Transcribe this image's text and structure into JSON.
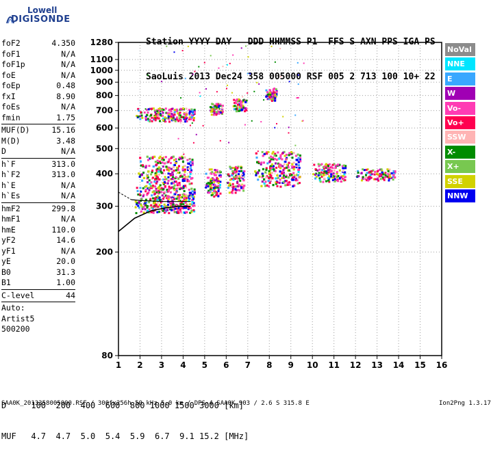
{
  "logo": {
    "line1": "Lowell",
    "line2": "DIGISONDE"
  },
  "header": {
    "line1": "Station YYYY DAY   DDD HHMMSS P1  FFS S AXN PPS IGA PS",
    "line2": "SaoLuis 2013 Dec24 358 005000 RSF 005 2 713 100 10+ 22"
  },
  "params": [
    {
      "label": "foF2",
      "value": "4.350"
    },
    {
      "label": "foF1",
      "value": "N/A"
    },
    {
      "label": "foF1p",
      "value": "N/A"
    },
    {
      "label": "foE",
      "value": "N/A"
    },
    {
      "label": "foEp",
      "value": "0.48"
    },
    {
      "label": "fxI",
      "value": "8.90"
    },
    {
      "label": "foEs",
      "value": "N/A"
    },
    {
      "label": "fmin",
      "value": "1.75"
    },
    {
      "sep": true
    },
    {
      "label": "MUF(D)",
      "value": "15.16"
    },
    {
      "label": "M(D)",
      "value": "3.48"
    },
    {
      "label": "D",
      "value": "N/A"
    },
    {
      "sep": true
    },
    {
      "label": "h`F",
      "value": "313.0"
    },
    {
      "label": "h`F2",
      "value": "313.0"
    },
    {
      "label": "h`E",
      "value": "N/A"
    },
    {
      "label": "h`Es",
      "value": "N/A"
    },
    {
      "sep": true
    },
    {
      "label": "hmF2",
      "value": "299.8"
    },
    {
      "label": "hmF1",
      "value": "N/A"
    },
    {
      "label": "hmE",
      "value": "110.0"
    },
    {
      "label": "yF2",
      "value": "14.6"
    },
    {
      "label": "yF1",
      "value": "N/A"
    },
    {
      "label": "yE",
      "value": "20.0"
    },
    {
      "label": "B0",
      "value": "31.3"
    },
    {
      "label": "B1",
      "value": "1.00"
    },
    {
      "sep": true
    },
    {
      "label": "C-level",
      "value": "44"
    },
    {
      "sep": true
    },
    {
      "text": "Auto:"
    },
    {
      "text": "Artist5"
    },
    {
      "text": "500200"
    }
  ],
  "legend": [
    {
      "label": "NoVal",
      "color": "#8c8c8c"
    },
    {
      "label": "NNE",
      "color": "#00e5ff"
    },
    {
      "label": "E",
      "color": "#39a7ff"
    },
    {
      "label": "W",
      "color": "#a000b4"
    },
    {
      "label": "Vo-",
      "color": "#ff3cb4"
    },
    {
      "label": "Vo+",
      "color": "#ff0050"
    },
    {
      "label": "SSW",
      "color": "#ffb4b4"
    },
    {
      "label": "X-",
      "color": "#008c00"
    },
    {
      "label": "X+",
      "color": "#78c850"
    },
    {
      "label": "SSE",
      "color": "#d2d200"
    },
    {
      "label": "NNW",
      "color": "#0000f0"
    }
  ],
  "dmuf": {
    "line1": "D     100  200  400  600  800 1000 1500 3000 [km]",
    "line2": "MUF   4.7  4.7  5.0  5.4  5.9  6.7  9.1 15.2 [MHz]"
  },
  "footer": {
    "left": "SAA0K_2013358005000.RSF / 300fx256h 50 kHz 5.0 km / DPS-4 SAA0K 903 / 2.6 S 315.8 E",
    "right": "Ion2Png 1.3.17"
  },
  "chart_data": {
    "type": "scatter",
    "xlabel": "",
    "ylabel": "",
    "xlim": [
      1,
      16
    ],
    "ylim": [
      80,
      1280
    ],
    "y_scale": "log",
    "x_ticks": [
      1,
      2,
      3,
      4,
      5,
      6,
      7,
      8,
      9,
      10,
      11,
      12,
      13,
      14,
      15,
      16
    ],
    "y_ticks": [
      80,
      200,
      300,
      400,
      500,
      600,
      700,
      800,
      900,
      1000,
      1100,
      1280
    ],
    "echo_clusters": [
      {
        "x": [
          1.75,
          4.5
        ],
        "y": [
          285,
          360
        ],
        "description_colors": "mixed"
      },
      {
        "x": [
          1.9,
          4.4
        ],
        "y": [
          360,
          470
        ]
      },
      {
        "x": [
          5.0,
          5.7
        ],
        "y": [
          330,
          420
        ]
      },
      {
        "x": [
          6.0,
          6.8
        ],
        "y": [
          340,
          430
        ]
      },
      {
        "x": [
          7.3,
          9.4
        ],
        "y": [
          360,
          490
        ]
      },
      {
        "x": [
          10.0,
          11.5
        ],
        "y": [
          375,
          440
        ]
      },
      {
        "x": [
          12.0,
          13.8
        ],
        "y": [
          380,
          420
        ]
      },
      {
        "x": [
          1.8,
          4.5
        ],
        "y": [
          640,
          720
        ]
      },
      {
        "x": [
          5.2,
          5.8
        ],
        "y": [
          680,
          750
        ]
      },
      {
        "x": [
          6.3,
          6.9
        ],
        "y": [
          700,
          780
        ]
      },
      {
        "x": [
          7.8,
          8.3
        ],
        "y": [
          770,
          860
        ]
      }
    ],
    "profile_curve": {
      "x": [
        1.0,
        1.75,
        2.5,
        3.2,
        3.8,
        4.35
      ],
      "y": [
        240,
        270,
        288,
        296,
        300,
        299.8
      ]
    },
    "trace_line": {
      "x": [
        1.6,
        2.0,
        3.0,
        4.0,
        4.35
      ],
      "y": [
        318,
        316,
        313,
        313,
        313
      ]
    }
  }
}
